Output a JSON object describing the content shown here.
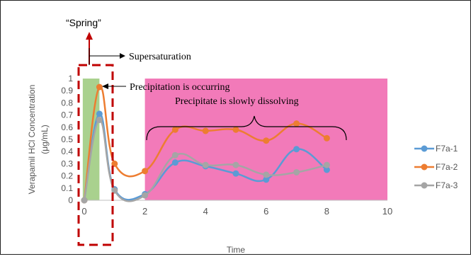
{
  "chart_data": {
    "type": "line",
    "xlabel": "Time",
    "ylabel": "Verapamil HCl Concentration",
    "ylabel_unit": "(μg/mL)",
    "xlim": [
      0,
      10
    ],
    "ylim": [
      0,
      1
    ],
    "x_ticks": [
      "0",
      "2",
      "4",
      "6",
      "8",
      "10"
    ],
    "y_ticks": [
      "0",
      "0.1",
      "0.2",
      "0.3",
      "0.4",
      "0.5",
      "0.6",
      "0.7",
      "0.8",
      "0.9",
      "1"
    ],
    "grid": false,
    "legend_position": "right",
    "series": [
      {
        "name": "F7a-1",
        "color": "#5b9bd5",
        "points": [
          [
            0,
            0
          ],
          [
            0.5,
            0.71
          ],
          [
            1,
            0.09
          ],
          [
            2,
            0.05
          ],
          [
            3,
            0.31
          ],
          [
            4,
            0.28
          ],
          [
            5,
            0.22
          ],
          [
            6,
            0.17
          ],
          [
            7,
            0.42
          ],
          [
            8,
            0.25
          ]
        ]
      },
      {
        "name": "F7a-2",
        "color": "#ed7d31",
        "points": [
          [
            0,
            0
          ],
          [
            0.5,
            0.93
          ],
          [
            1,
            0.3
          ],
          [
            2,
            0.24
          ],
          [
            3,
            0.58
          ],
          [
            4,
            0.57
          ],
          [
            5,
            0.58
          ],
          [
            6,
            0.49
          ],
          [
            7,
            0.63
          ],
          [
            8,
            0.51
          ]
        ]
      },
      {
        "name": "F7a-3",
        "color": "#a5a5a5",
        "points": [
          [
            0,
            0
          ],
          [
            0.5,
            0.66
          ],
          [
            1,
            0.08
          ],
          [
            2,
            0.04
          ],
          [
            3,
            0.37
          ],
          [
            4,
            0.29
          ],
          [
            5,
            0.29
          ],
          [
            6,
            0.21
          ],
          [
            7,
            0.23
          ],
          [
            8,
            0.29
          ]
        ]
      }
    ],
    "regions": [
      {
        "name": "supersaturation",
        "x": [
          -0.05,
          0.5
        ],
        "color": "#a9d18e"
      },
      {
        "name": "dissolving",
        "x": [
          2,
          10
        ],
        "color": "#f27ab9"
      }
    ],
    "annotations": {
      "spring": "“Spring”",
      "supersaturation": "Supersaturation",
      "precipitation": "Precipitation is occurring",
      "dissolving": "Precipitate is slowly dissolving"
    }
  }
}
